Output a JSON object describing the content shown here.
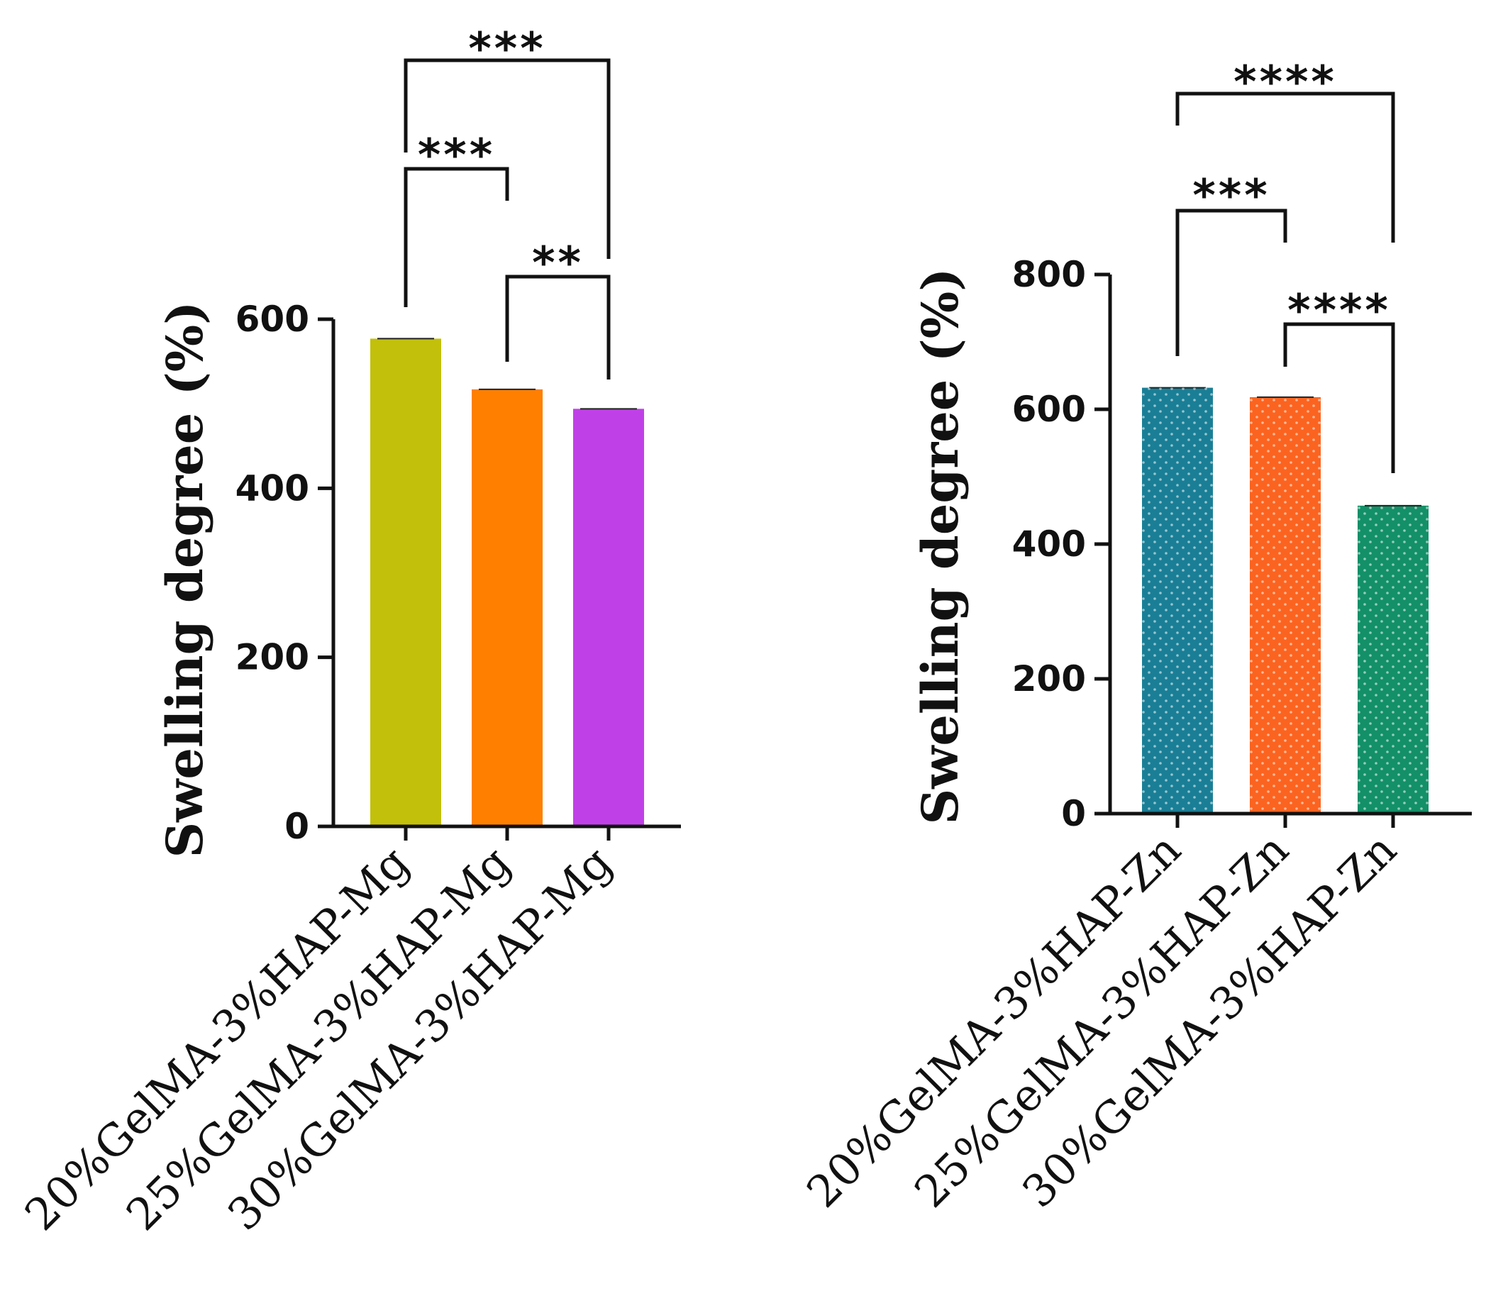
{
  "chart_data": [
    {
      "type": "bar",
      "title": "",
      "xlabel": "",
      "ylabel": "Swelling degree (%)",
      "ylim": [
        0,
        600
      ],
      "yticks": [
        "0",
        "200",
        "400",
        "600"
      ],
      "categories": [
        "20%GelMA-3%HAP-Mg",
        "25%GelMA-3%HAP-Mg",
        "30%GelMA-3%HAP-Mg"
      ],
      "values": [
        577,
        517,
        494
      ],
      "colors": [
        "#c2c00a",
        "#ff8000",
        "#c040e8"
      ],
      "pattern": "solid",
      "significance": [
        {
          "from": 0,
          "to": 2,
          "label": "***"
        },
        {
          "from": 0,
          "to": 1,
          "label": "***"
        },
        {
          "from": 1,
          "to": 2,
          "label": "**"
        }
      ]
    },
    {
      "type": "bar",
      "title": "",
      "xlabel": "",
      "ylabel": "Swelling degree (%)",
      "ylim": [
        0,
        800
      ],
      "yticks": [
        "0",
        "200",
        "400",
        "600",
        "800"
      ],
      "categories": [
        "20%GelMA-3%HAP-Zn",
        "25%GelMA-3%HAP-Zn",
        "30%GelMA-3%HAP-Zn"
      ],
      "values": [
        632,
        618,
        457
      ],
      "colors": [
        "#1a7f96",
        "#fb6420",
        "#139068"
      ],
      "pattern": "dotted",
      "significance": [
        {
          "from": 0,
          "to": 2,
          "label": "****"
        },
        {
          "from": 0,
          "to": 1,
          "label": "***"
        },
        {
          "from": 1,
          "to": 2,
          "label": "****"
        }
      ]
    }
  ]
}
